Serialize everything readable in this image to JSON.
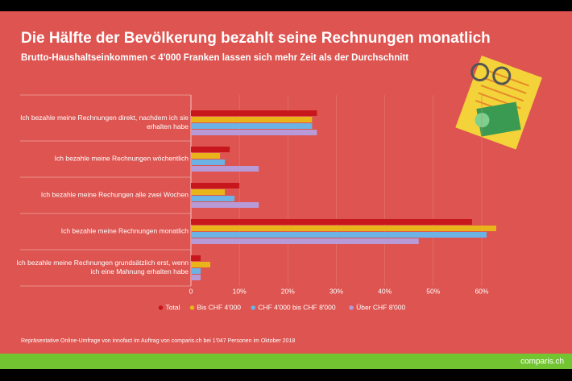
{
  "chart_data": {
    "type": "hbar",
    "title": "Die Hälfte der Bevölkerung bezahlt seine Rechnungen monatlich",
    "subtitle": "Brutto-Haushaltseinkommen < 4'000 Franken lassen sich mehr Zeit als der Durchschnitt",
    "categories": [
      "Ich bezahle meine Rechnungen direkt, nachdem ich sie erhalten habe",
      "Ich bezahle meine Rechnungen wöchentlich",
      "Ich bezahle meine Rechungen alle zwei Wochen",
      "Ich bezahle meine Rechnungen monatlich",
      "Ich bezahle meine Rechnungen grundsätzlich erst, wenn ich eine Mahnung erhalten habe"
    ],
    "series": [
      {
        "name": "Total",
        "color": "#c8161d",
        "values": [
          26,
          8,
          10,
          58,
          2
        ]
      },
      {
        "name": "Bis CHF 4'000",
        "color": "#e8b41a",
        "values": [
          25,
          6,
          7,
          63,
          4
        ]
      },
      {
        "name": "CHF 4'000 bis CHF 8'000",
        "color": "#6cb2e4",
        "values": [
          25,
          7,
          9,
          61,
          2
        ]
      },
      {
        "name": "Über CHF 8'000",
        "color": "#b79ad6",
        "values": [
          26,
          14,
          14,
          47,
          2
        ]
      }
    ],
    "xlim": [
      0,
      63
    ],
    "xticks": [
      0,
      {
        "value": 10,
        "label": "10%"
      },
      {
        "value": 20,
        "label": "20%"
      },
      {
        "value": 30,
        "label": "30%"
      },
      {
        "value": 40,
        "label": "40%"
      },
      {
        "value": 50,
        "label": "50%"
      },
      {
        "value": 60,
        "label": "60%"
      }
    ],
    "legend": "bottom"
  },
  "note": "Repräsentative Online-Umfrage von innofact im Auftrag von comparis.ch bei 1'047 Personen im Oktober 2018",
  "brand": "comparis.ch"
}
